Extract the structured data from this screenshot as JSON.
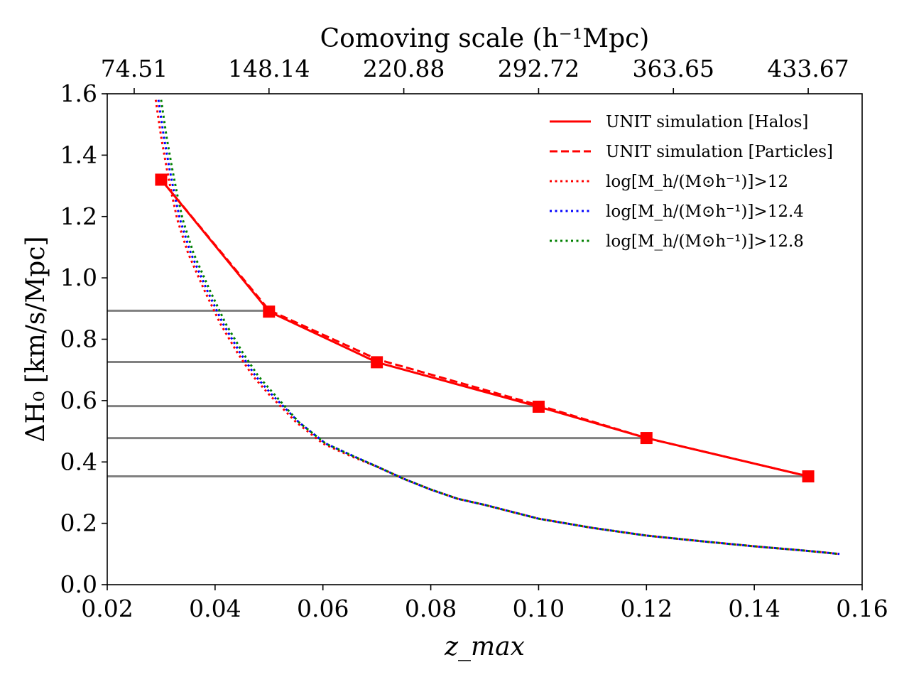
{
  "chart_data": {
    "type": "line",
    "top_axis": {
      "label": "Comoving scale (h⁻¹Mpc)",
      "ticks": [
        {
          "z": 0.025,
          "label": "74.51"
        },
        {
          "z": 0.05,
          "label": "148.14"
        },
        {
          "z": 0.075,
          "label": "220.88"
        },
        {
          "z": 0.1,
          "label": "292.72"
        },
        {
          "z": 0.125,
          "label": "363.65"
        },
        {
          "z": 0.15,
          "label": "433.67"
        }
      ]
    },
    "xlabel": "z_max",
    "ylabel": "ΔH₀ [km/s/Mpc]",
    "xlim": [
      0.02,
      0.16
    ],
    "ylim": [
      0.0,
      1.6
    ],
    "xticks": [
      {
        "value": 0.02,
        "label": "0.02"
      },
      {
        "value": 0.04,
        "label": "0.04"
      },
      {
        "value": 0.06,
        "label": "0.06"
      },
      {
        "value": 0.08,
        "label": "0.08"
      },
      {
        "value": 0.1,
        "label": "0.10"
      },
      {
        "value": 0.12,
        "label": "0.12"
      },
      {
        "value": 0.14,
        "label": "0.14"
      },
      {
        "value": 0.16,
        "label": "0.16"
      }
    ],
    "yticks": [
      {
        "value": 0.0,
        "label": "0.0"
      },
      {
        "value": 0.2,
        "label": "0.2"
      },
      {
        "value": 0.4,
        "label": "0.4"
      },
      {
        "value": 0.6,
        "label": "0.6"
      },
      {
        "value": 0.8,
        "label": "0.8"
      },
      {
        "value": 1.0,
        "label": "1.0"
      },
      {
        "value": 1.2,
        "label": "1.2"
      },
      {
        "value": 1.4,
        "label": "1.4"
      },
      {
        "value": 1.6,
        "label": "1.6"
      }
    ],
    "grid": false,
    "legend_position": "top-right",
    "series": [
      {
        "name": "UNIT simulation [Halos]",
        "color": "#ff0000",
        "dash": "solid",
        "marker": "square",
        "x": [
          0.03,
          0.05,
          0.07,
          0.1,
          0.12,
          0.15
        ],
        "y": [
          1.32,
          0.89,
          0.725,
          0.58,
          0.478,
          0.353
        ]
      },
      {
        "name": "UNIT simulation [Particles]",
        "color": "#ff0000",
        "dash": "dashed",
        "marker": "none",
        "x": [
          0.03,
          0.05,
          0.07,
          0.1,
          0.12,
          0.15
        ],
        "y": [
          1.32,
          0.895,
          0.735,
          0.585,
          0.478,
          0.353
        ]
      },
      {
        "name": "log[M_h/(M⊙h⁻¹)]>12",
        "color": "#ff0000",
        "dash": "dotted",
        "marker": "none",
        "x": [
          0.029,
          0.03,
          0.031,
          0.032,
          0.033,
          0.035,
          0.038,
          0.041,
          0.044,
          0.047,
          0.05,
          0.055,
          0.06,
          0.065,
          0.07,
          0.075,
          0.08,
          0.085,
          0.09,
          0.1,
          0.11,
          0.12,
          0.13,
          0.14,
          0.15,
          0.1558
        ],
        "y": [
          1.58,
          1.46,
          1.36,
          1.27,
          1.19,
          1.08,
          0.96,
          0.85,
          0.76,
          0.68,
          0.62,
          0.53,
          0.46,
          0.42,
          0.385,
          0.345,
          0.31,
          0.28,
          0.26,
          0.215,
          0.185,
          0.16,
          0.142,
          0.125,
          0.11,
          0.1
        ]
      },
      {
        "name": "log[M_h/(M⊙h⁻¹)]>12.4",
        "color": "#0000ff",
        "dash": "dotted",
        "marker": "none",
        "x": [
          0.0295,
          0.0305,
          0.0315,
          0.0325,
          0.0335,
          0.0355,
          0.0385,
          0.0415,
          0.0445,
          0.0475,
          0.0505,
          0.0555,
          0.0605,
          0.0655,
          0.07,
          0.075,
          0.08,
          0.085,
          0.09,
          0.1,
          0.11,
          0.12,
          0.13,
          0.14,
          0.15,
          0.1558
        ],
        "y": [
          1.58,
          1.46,
          1.36,
          1.27,
          1.19,
          1.08,
          0.96,
          0.85,
          0.76,
          0.68,
          0.62,
          0.53,
          0.46,
          0.42,
          0.385,
          0.345,
          0.31,
          0.28,
          0.26,
          0.215,
          0.185,
          0.16,
          0.142,
          0.125,
          0.11,
          0.1
        ]
      },
      {
        "name": "log[M_h/(M⊙h⁻¹)]>12.8",
        "color": "#008000",
        "dash": "dotted",
        "marker": "none",
        "x": [
          0.03,
          0.031,
          0.032,
          0.033,
          0.034,
          0.036,
          0.039,
          0.042,
          0.045,
          0.048,
          0.051,
          0.0555,
          0.0605,
          0.0655,
          0.07,
          0.075,
          0.08,
          0.085,
          0.09,
          0.1,
          0.11,
          0.12,
          0.13,
          0.14,
          0.15,
          0.1558
        ],
        "y": [
          1.58,
          1.46,
          1.36,
          1.27,
          1.19,
          1.08,
          0.96,
          0.85,
          0.76,
          0.68,
          0.62,
          0.53,
          0.46,
          0.42,
          0.385,
          0.345,
          0.31,
          0.28,
          0.26,
          0.215,
          0.185,
          0.16,
          0.142,
          0.125,
          0.11,
          0.1
        ]
      }
    ],
    "reference_lines": [
      {
        "y": 0.893,
        "x_end": 0.05,
        "color": "#808080"
      },
      {
        "y": 0.726,
        "x_end": 0.07,
        "color": "#808080"
      },
      {
        "y": 0.582,
        "x_end": 0.1,
        "color": "#808080"
      },
      {
        "y": 0.478,
        "x_end": 0.12,
        "color": "#808080"
      },
      {
        "y": 0.353,
        "x_end": 0.15,
        "color": "#808080"
      }
    ]
  }
}
